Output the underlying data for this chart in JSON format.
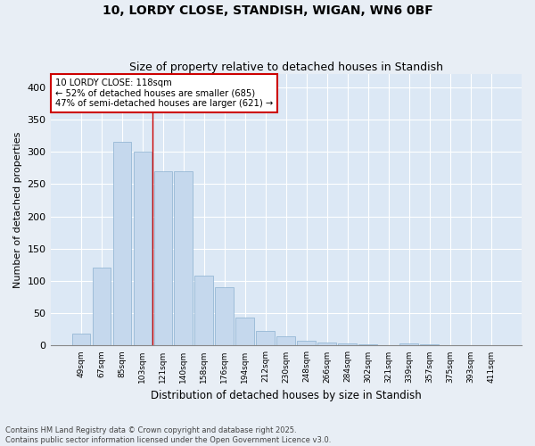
{
  "title": "10, LORDY CLOSE, STANDISH, WIGAN, WN6 0BF",
  "subtitle": "Size of property relative to detached houses in Standish",
  "xlabel": "Distribution of detached houses by size in Standish",
  "ylabel": "Number of detached properties",
  "bar_color": "#c5d8ed",
  "bar_edge_color": "#8ab0d0",
  "background_color": "#dce8f5",
  "fig_background_color": "#e8eef5",
  "grid_color": "#ffffff",
  "annotation_text": "10 LORDY CLOSE: 118sqm\n← 52% of detached houses are smaller (685)\n47% of semi-detached houses are larger (621) →",
  "categories": [
    "49sqm",
    "67sqm",
    "85sqm",
    "103sqm",
    "121sqm",
    "140sqm",
    "158sqm",
    "176sqm",
    "194sqm",
    "212sqm",
    "230sqm",
    "248sqm",
    "266sqm",
    "284sqm",
    "302sqm",
    "321sqm",
    "339sqm",
    "357sqm",
    "375sqm",
    "393sqm",
    "411sqm"
  ],
  "bar_heights": [
    18,
    120,
    315,
    300,
    270,
    270,
    108,
    90,
    43,
    22,
    15,
    8,
    5,
    4,
    2,
    0,
    3,
    2,
    1,
    0,
    1
  ],
  "red_line_x": 4.0,
  "ylim": [
    0,
    420
  ],
  "yticks": [
    0,
    50,
    100,
    150,
    200,
    250,
    300,
    350,
    400
  ],
  "footer_text": "Contains HM Land Registry data © Crown copyright and database right 2025.\nContains public sector information licensed under the Open Government Licence v3.0.",
  "figsize": [
    6.0,
    5.0
  ],
  "dpi": 100
}
